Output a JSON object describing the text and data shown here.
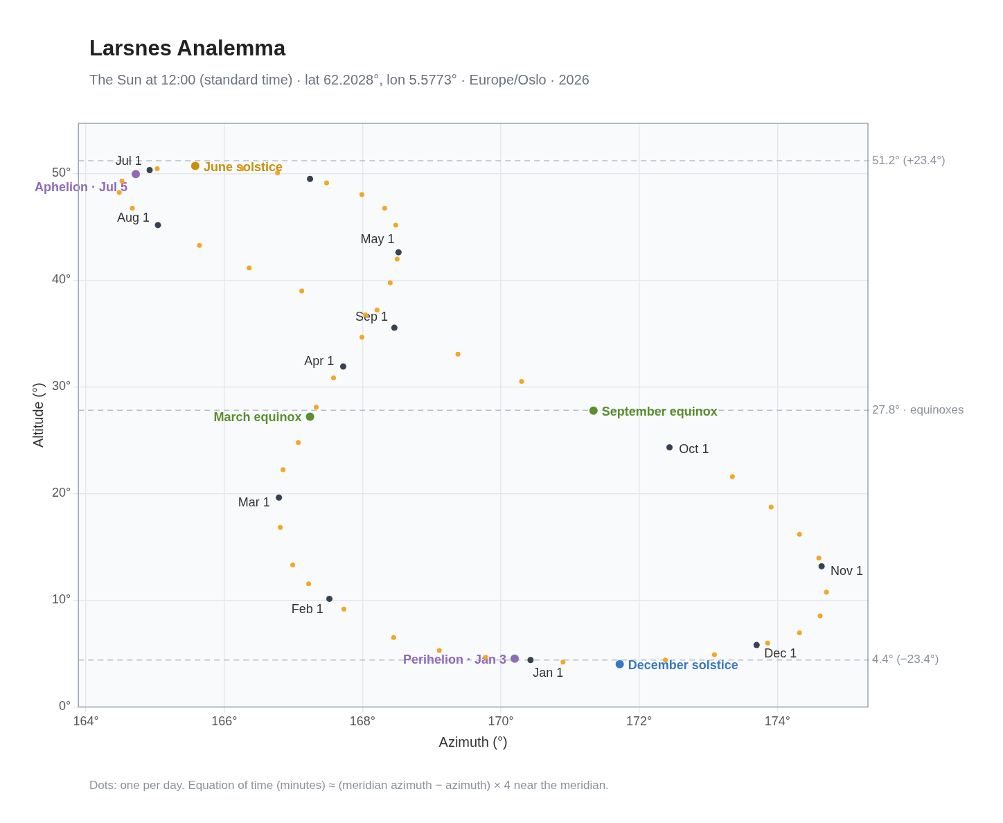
{
  "chart_data": {
    "type": "scatter",
    "title": "Larsnes Analemma",
    "subtitle": "The Sun at 12:00 (standard time) · lat 62.2028°, lon 5.5773° · Europe/Oslo · 2026",
    "xlabel": "Azimuth (°)",
    "ylabel": "Altitude (°)",
    "xlim": [
      163.89,
      175.31
    ],
    "ylim": [
      0,
      54.7
    ],
    "xticks": [
      {
        "value": 164,
        "label": "164°"
      },
      {
        "value": 166,
        "label": "166°"
      },
      {
        "value": 168,
        "label": "168°"
      },
      {
        "value": 170,
        "label": "170°"
      },
      {
        "value": 172,
        "label": "172°"
      },
      {
        "value": 174,
        "label": "174°"
      }
    ],
    "yticks": [
      {
        "value": 0,
        "label": "0°"
      },
      {
        "value": 10,
        "label": "10°"
      },
      {
        "value": 20,
        "label": "20°"
      },
      {
        "value": 30,
        "label": "30°"
      },
      {
        "value": 40,
        "label": "40°"
      },
      {
        "value": 50,
        "label": "50°"
      }
    ],
    "grid": true,
    "marker": "circle",
    "series": [
      {
        "color": "#f5a623",
        "x": [
          169.78,
          169.11,
          168.45,
          167.73,
          167.22,
          166.99,
          166.81,
          166.85,
          167.07,
          167.33,
          167.58,
          167.99,
          168.21,
          168.4,
          168.5,
          168.48,
          168.32,
          167.99,
          167.48,
          166.77,
          166.26,
          165.03,
          164.52,
          164.48,
          164.67,
          165.64,
          166.36,
          167.12,
          168.04,
          169.38,
          170.3,
          173.35,
          173.91,
          174.32,
          174.6,
          174.71,
          174.62,
          174.32,
          173.86,
          173.09,
          172.38,
          170.9
        ],
        "values": [
          4.65,
          5.29,
          6.5,
          9.17,
          11.53,
          13.31,
          16.82,
          22.23,
          24.78,
          28.09,
          30.83,
          34.65,
          37.2,
          39.75,
          41.97,
          45.16,
          46.75,
          48.03,
          49.11,
          50.06,
          50.45,
          50.45,
          49.3,
          48.22,
          46.75,
          43.25,
          41.15,
          38.98,
          36.75,
          33.06,
          30.51,
          21.59,
          18.73,
          16.18,
          13.95,
          10.76,
          8.54,
          6.94,
          5.99,
          4.9,
          4.39,
          4.2
        ]
      },
      {
        "color": "#374151",
        "x": [
          170.43,
          167.52,
          166.79,
          167.72,
          168.52,
          167.24,
          164.92,
          165.04,
          168.46,
          172.44,
          174.64,
          173.7
        ],
        "values": [
          4.39,
          10.13,
          19.62,
          31.91,
          42.61,
          49.49,
          50.32,
          45.16,
          35.54,
          24.33,
          13.18,
          5.8
        ]
      },
      {
        "name": "June solstice",
        "color": "#c8900a",
        "x": [
          165.58
        ],
        "values": [
          50.7
        ]
      },
      {
        "name": "Aphelion · Jul 5",
        "color": "#8e6bb8",
        "x": [
          164.72
        ],
        "values": [
          49.94
        ]
      },
      {
        "name": "March equinox",
        "color": "#5a8f2e",
        "x": [
          167.24
        ],
        "values": [
          27.2
        ]
      },
      {
        "name": "September equinox",
        "color": "#5a8f2e",
        "x": [
          171.34
        ],
        "values": [
          27.77
        ]
      },
      {
        "name": "December solstice",
        "color": "#3a78c4",
        "x": [
          171.72
        ],
        "values": [
          4.01
        ]
      },
      {
        "name": "Perihelion · Jan 3",
        "color": "#8e6bb8",
        "x": [
          170.2
        ],
        "values": [
          4.52
        ]
      }
    ],
    "ref_lines": [
      {
        "axis": "y",
        "value": 51.2,
        "label": "51.2° (+23.4°)"
      },
      {
        "axis": "y",
        "value": 27.8,
        "label": "27.8° · equinoxes"
      },
      {
        "axis": "y",
        "value": 4.4,
        "label": "4.4° (−23.4°)"
      }
    ],
    "annotations": [
      {
        "text": "Jan 1",
        "x": 170.43,
        "y": 4.39
      },
      {
        "text": "Feb 1",
        "x": 167.52,
        "y": 10.13
      },
      {
        "text": "Mar 1",
        "x": 166.79,
        "y": 19.62
      },
      {
        "text": "Apr 1",
        "x": 167.72,
        "y": 31.91
      },
      {
        "text": "May 1",
        "x": 168.52,
        "y": 42.61
      },
      {
        "text": "Jul 1",
        "x": 164.92,
        "y": 50.32
      },
      {
        "text": "Aug 1",
        "x": 165.04,
        "y": 45.16
      },
      {
        "text": "Sep 1",
        "x": 168.46,
        "y": 35.54
      },
      {
        "text": "Oct 1",
        "x": 172.44,
        "y": 24.33
      },
      {
        "text": "Nov 1",
        "x": 174.64,
        "y": 13.18
      },
      {
        "text": "Dec 1",
        "x": 173.7,
        "y": 5.8
      },
      "Dots: one per day. Equation of time (minutes) ≈ (meridian azimuth − azimuth) × 4 near the meridian."
    ]
  }
}
